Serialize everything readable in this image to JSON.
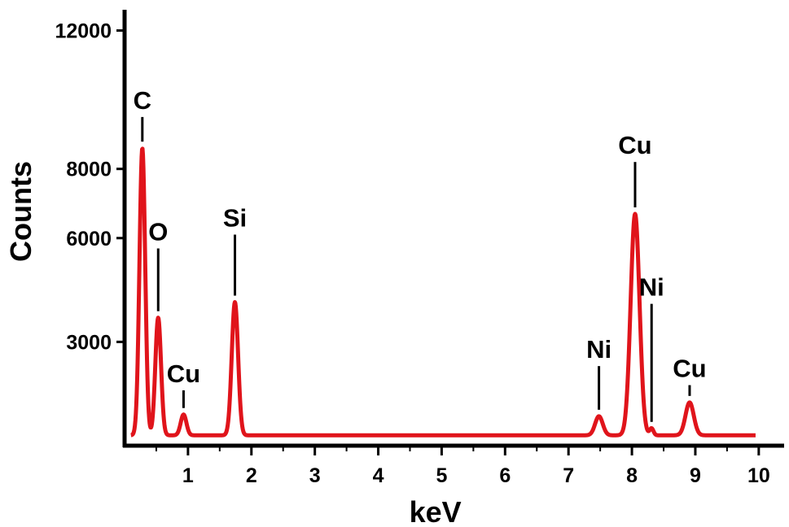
{
  "chart_data": {
    "type": "line",
    "title": "",
    "xlabel": "keV",
    "ylabel": "Counts",
    "xlim": [
      0,
      10.4
    ],
    "ylim": [
      0,
      12600
    ],
    "x_ticks": [
      1,
      2,
      3,
      4,
      5,
      6,
      7,
      8,
      9,
      10
    ],
    "y_ticks": [
      3000,
      6000,
      8000,
      12000
    ],
    "grid": false,
    "legend": "none",
    "line_color": "#e0141b",
    "baseline_counts": 300,
    "peaks": [
      {
        "label": "C",
        "energy": 0.28,
        "counts": 8600
      },
      {
        "label": "O",
        "energy": 0.53,
        "counts": 3700
      },
      {
        "label": "Cu",
        "energy": 0.93,
        "counts": 900
      },
      {
        "label": "Si",
        "energy": 1.74,
        "counts": 4150
      },
      {
        "label": "Ni",
        "energy": 7.48,
        "counts": 850
      },
      {
        "label": "Cu",
        "energy": 8.05,
        "counts": 6700
      },
      {
        "label": "Ni",
        "energy": 8.31,
        "counts": 500
      },
      {
        "label": "Cu",
        "energy": 8.91,
        "counts": 1250
      }
    ]
  }
}
